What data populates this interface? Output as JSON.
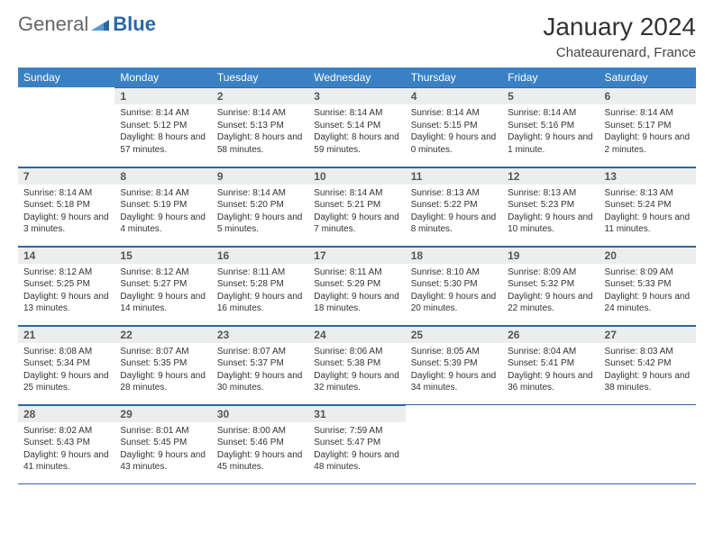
{
  "brand": {
    "part1": "General",
    "part2": "Blue"
  },
  "title": "January 2024",
  "location": "Chateaurenard, France",
  "colors": {
    "header_bg": "#3a81c4",
    "header_fg": "#ffffff",
    "daynum_bg": "#eceeee",
    "rule": "#2d67a3",
    "logo_blue": "#2d67a3"
  },
  "weekdays": [
    "Sunday",
    "Monday",
    "Tuesday",
    "Wednesday",
    "Thursday",
    "Friday",
    "Saturday"
  ],
  "weeks": [
    [
      {
        "n": "",
        "sr": "",
        "ss": "",
        "dl": ""
      },
      {
        "n": "1",
        "sr": "Sunrise: 8:14 AM",
        "ss": "Sunset: 5:12 PM",
        "dl": "Daylight: 8 hours and 57 minutes."
      },
      {
        "n": "2",
        "sr": "Sunrise: 8:14 AM",
        "ss": "Sunset: 5:13 PM",
        "dl": "Daylight: 8 hours and 58 minutes."
      },
      {
        "n": "3",
        "sr": "Sunrise: 8:14 AM",
        "ss": "Sunset: 5:14 PM",
        "dl": "Daylight: 8 hours and 59 minutes."
      },
      {
        "n": "4",
        "sr": "Sunrise: 8:14 AM",
        "ss": "Sunset: 5:15 PM",
        "dl": "Daylight: 9 hours and 0 minutes."
      },
      {
        "n": "5",
        "sr": "Sunrise: 8:14 AM",
        "ss": "Sunset: 5:16 PM",
        "dl": "Daylight: 9 hours and 1 minute."
      },
      {
        "n": "6",
        "sr": "Sunrise: 8:14 AM",
        "ss": "Sunset: 5:17 PM",
        "dl": "Daylight: 9 hours and 2 minutes."
      }
    ],
    [
      {
        "n": "7",
        "sr": "Sunrise: 8:14 AM",
        "ss": "Sunset: 5:18 PM",
        "dl": "Daylight: 9 hours and 3 minutes."
      },
      {
        "n": "8",
        "sr": "Sunrise: 8:14 AM",
        "ss": "Sunset: 5:19 PM",
        "dl": "Daylight: 9 hours and 4 minutes."
      },
      {
        "n": "9",
        "sr": "Sunrise: 8:14 AM",
        "ss": "Sunset: 5:20 PM",
        "dl": "Daylight: 9 hours and 5 minutes."
      },
      {
        "n": "10",
        "sr": "Sunrise: 8:14 AM",
        "ss": "Sunset: 5:21 PM",
        "dl": "Daylight: 9 hours and 7 minutes."
      },
      {
        "n": "11",
        "sr": "Sunrise: 8:13 AM",
        "ss": "Sunset: 5:22 PM",
        "dl": "Daylight: 9 hours and 8 minutes."
      },
      {
        "n": "12",
        "sr": "Sunrise: 8:13 AM",
        "ss": "Sunset: 5:23 PM",
        "dl": "Daylight: 9 hours and 10 minutes."
      },
      {
        "n": "13",
        "sr": "Sunrise: 8:13 AM",
        "ss": "Sunset: 5:24 PM",
        "dl": "Daylight: 9 hours and 11 minutes."
      }
    ],
    [
      {
        "n": "14",
        "sr": "Sunrise: 8:12 AM",
        "ss": "Sunset: 5:25 PM",
        "dl": "Daylight: 9 hours and 13 minutes."
      },
      {
        "n": "15",
        "sr": "Sunrise: 8:12 AM",
        "ss": "Sunset: 5:27 PM",
        "dl": "Daylight: 9 hours and 14 minutes."
      },
      {
        "n": "16",
        "sr": "Sunrise: 8:11 AM",
        "ss": "Sunset: 5:28 PM",
        "dl": "Daylight: 9 hours and 16 minutes."
      },
      {
        "n": "17",
        "sr": "Sunrise: 8:11 AM",
        "ss": "Sunset: 5:29 PM",
        "dl": "Daylight: 9 hours and 18 minutes."
      },
      {
        "n": "18",
        "sr": "Sunrise: 8:10 AM",
        "ss": "Sunset: 5:30 PM",
        "dl": "Daylight: 9 hours and 20 minutes."
      },
      {
        "n": "19",
        "sr": "Sunrise: 8:09 AM",
        "ss": "Sunset: 5:32 PM",
        "dl": "Daylight: 9 hours and 22 minutes."
      },
      {
        "n": "20",
        "sr": "Sunrise: 8:09 AM",
        "ss": "Sunset: 5:33 PM",
        "dl": "Daylight: 9 hours and 24 minutes."
      }
    ],
    [
      {
        "n": "21",
        "sr": "Sunrise: 8:08 AM",
        "ss": "Sunset: 5:34 PM",
        "dl": "Daylight: 9 hours and 25 minutes."
      },
      {
        "n": "22",
        "sr": "Sunrise: 8:07 AM",
        "ss": "Sunset: 5:35 PM",
        "dl": "Daylight: 9 hours and 28 minutes."
      },
      {
        "n": "23",
        "sr": "Sunrise: 8:07 AM",
        "ss": "Sunset: 5:37 PM",
        "dl": "Daylight: 9 hours and 30 minutes."
      },
      {
        "n": "24",
        "sr": "Sunrise: 8:06 AM",
        "ss": "Sunset: 5:38 PM",
        "dl": "Daylight: 9 hours and 32 minutes."
      },
      {
        "n": "25",
        "sr": "Sunrise: 8:05 AM",
        "ss": "Sunset: 5:39 PM",
        "dl": "Daylight: 9 hours and 34 minutes."
      },
      {
        "n": "26",
        "sr": "Sunrise: 8:04 AM",
        "ss": "Sunset: 5:41 PM",
        "dl": "Daylight: 9 hours and 36 minutes."
      },
      {
        "n": "27",
        "sr": "Sunrise: 8:03 AM",
        "ss": "Sunset: 5:42 PM",
        "dl": "Daylight: 9 hours and 38 minutes."
      }
    ],
    [
      {
        "n": "28",
        "sr": "Sunrise: 8:02 AM",
        "ss": "Sunset: 5:43 PM",
        "dl": "Daylight: 9 hours and 41 minutes."
      },
      {
        "n": "29",
        "sr": "Sunrise: 8:01 AM",
        "ss": "Sunset: 5:45 PM",
        "dl": "Daylight: 9 hours and 43 minutes."
      },
      {
        "n": "30",
        "sr": "Sunrise: 8:00 AM",
        "ss": "Sunset: 5:46 PM",
        "dl": "Daylight: 9 hours and 45 minutes."
      },
      {
        "n": "31",
        "sr": "Sunrise: 7:59 AM",
        "ss": "Sunset: 5:47 PM",
        "dl": "Daylight: 9 hours and 48 minutes."
      },
      {
        "n": "",
        "sr": "",
        "ss": "",
        "dl": ""
      },
      {
        "n": "",
        "sr": "",
        "ss": "",
        "dl": ""
      },
      {
        "n": "",
        "sr": "",
        "ss": "",
        "dl": ""
      }
    ]
  ]
}
